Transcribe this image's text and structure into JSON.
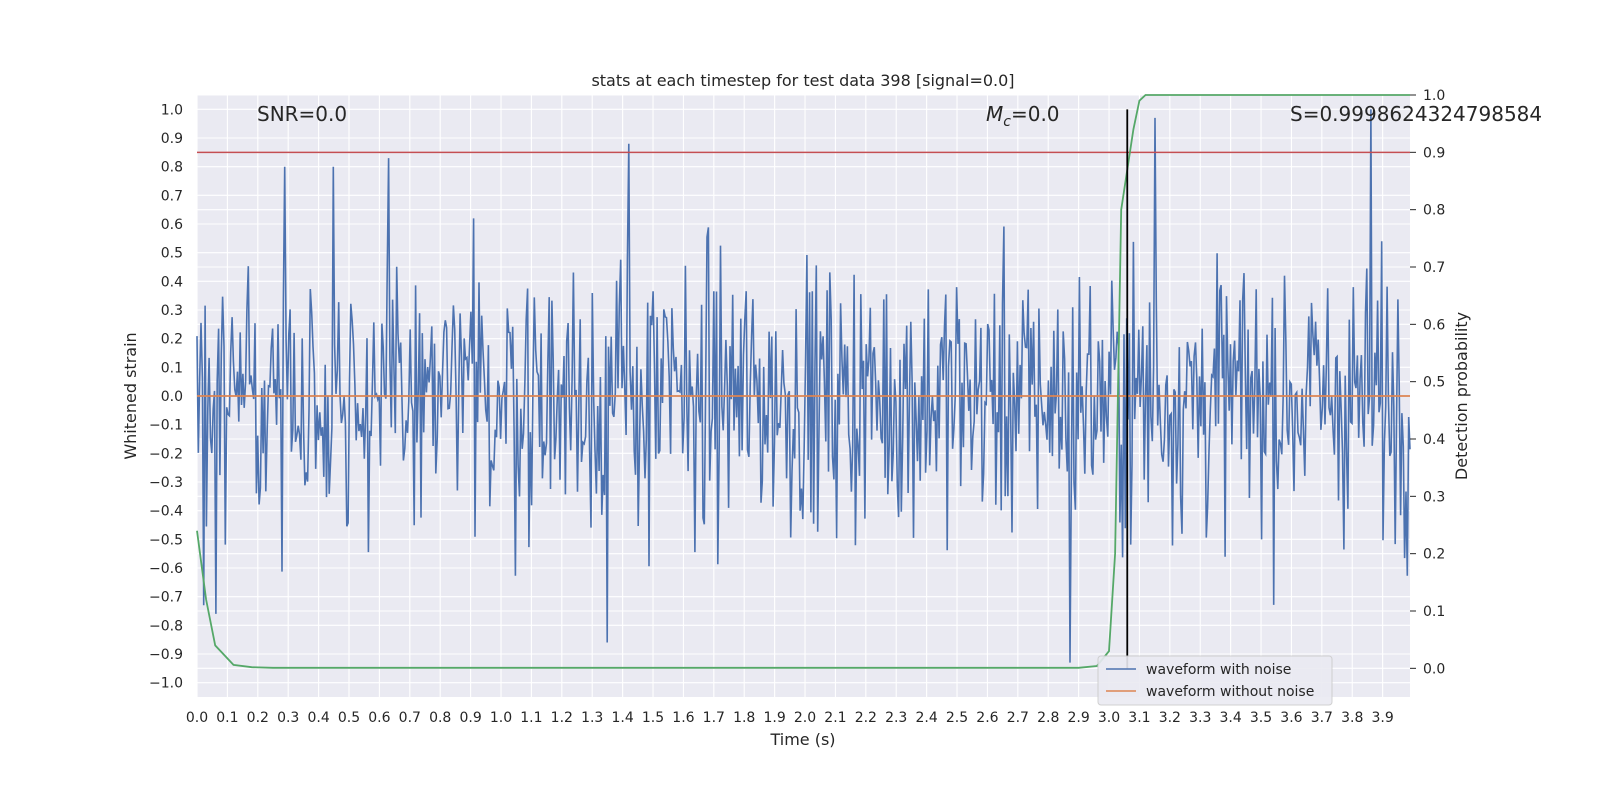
{
  "chart_data": {
    "type": "line",
    "title": "stats at each timestep for test data 398 [signal=0.0]",
    "xlabel": "Time (s)",
    "ylabel": "Whitened strain",
    "y2label": "Detection probability",
    "xlim": [
      0.0,
      3.99
    ],
    "ylim": [
      -1.05,
      1.05
    ],
    "y2lim": [
      -0.05,
      1.0
    ],
    "x_ticks": [
      0.0,
      0.1,
      0.2,
      0.3,
      0.4,
      0.5,
      0.6,
      0.7,
      0.8,
      0.9,
      1.0,
      1.1,
      1.2,
      1.3,
      1.4,
      1.5,
      1.6,
      1.7,
      1.8,
      1.9,
      2.0,
      2.1,
      2.2,
      2.3,
      2.4,
      2.5,
      2.6,
      2.7,
      2.8,
      2.9,
      3.0,
      3.1,
      3.2,
      3.3,
      3.4,
      3.5,
      3.6,
      3.7,
      3.8,
      3.9
    ],
    "y_ticks": [
      -1.0,
      -0.9,
      -0.8,
      -0.7,
      -0.6,
      -0.5,
      -0.4,
      -0.3,
      -0.2,
      -0.1,
      0.0,
      0.1,
      0.2,
      0.3,
      0.4,
      0.5,
      0.6,
      0.7,
      0.8,
      0.9,
      1.0
    ],
    "y2_ticks": [
      0.0,
      0.1,
      0.2,
      0.3,
      0.4,
      0.5,
      0.6,
      0.7,
      0.8,
      0.9,
      1.0
    ],
    "grid": true,
    "legend_position": "bottom-right",
    "annotations": {
      "snr": "SNR=0.0",
      "mc": "=0.0",
      "mc_symbol": "M",
      "mc_subscript": "c",
      "s": "S=0.9998624324798584"
    },
    "threshold_line": {
      "y2": 0.9,
      "color": "#c44e52"
    },
    "vertical_marker": {
      "x": 3.06,
      "color": "#000000"
    },
    "series": [
      {
        "name": "waveform with noise",
        "color": "#4c72b0",
        "axis": "left",
        "description_stats": {
          "approx_min": -0.93,
          "approx_max": 1.0,
          "n_points": 900
        },
        "spikes": [
          {
            "x": 0.02,
            "y": -0.73
          },
          {
            "x": 0.06,
            "y": -0.76
          },
          {
            "x": 0.29,
            "y": 0.8
          },
          {
            "x": 0.45,
            "y": 0.8
          },
          {
            "x": 0.63,
            "y": 0.83
          },
          {
            "x": 1.42,
            "y": 0.88
          },
          {
            "x": 1.35,
            "y": -0.86
          },
          {
            "x": 2.87,
            "y": -0.93
          },
          {
            "x": 3.15,
            "y": 0.97
          },
          {
            "x": 3.86,
            "y": 1.0
          }
        ]
      },
      {
        "name": "waveform without noise",
        "color": "#dd8452",
        "axis": "left",
        "x": [
          0.0,
          3.99
        ],
        "y": [
          0.0,
          0.0
        ]
      },
      {
        "name": "detection probability",
        "color": "#55a868",
        "axis": "right",
        "x": [
          0.0,
          0.03,
          0.06,
          0.12,
          0.18,
          0.25,
          2.9,
          2.96,
          3.0,
          3.02,
          3.04,
          3.06,
          3.08,
          3.1,
          3.12,
          3.2,
          3.99
        ],
        "y": [
          0.24,
          0.12,
          0.04,
          0.006,
          0.002,
          0.001,
          0.001,
          0.004,
          0.03,
          0.2,
          0.8,
          0.87,
          0.94,
          0.99,
          1.0,
          1.0,
          1.0
        ]
      }
    ]
  }
}
